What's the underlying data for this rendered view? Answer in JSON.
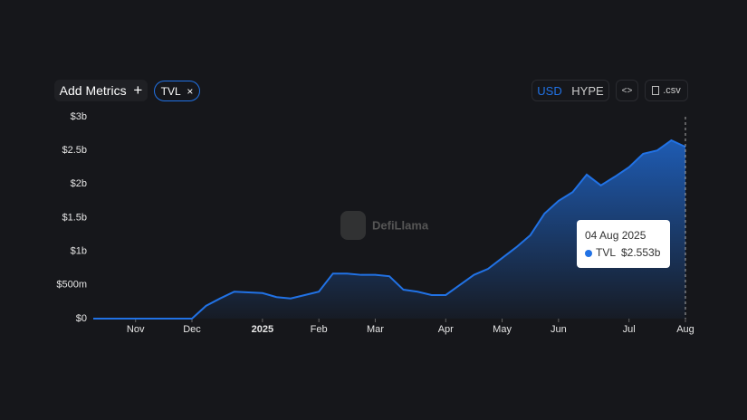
{
  "controls": {
    "add_metrics": "Add Metrics",
    "add_icon": "+",
    "chip": "TVL",
    "chip_close": "×",
    "currency": [
      "USD",
      "HYPE"
    ],
    "embed": "<>",
    "csv": ".csv"
  },
  "watermark": "DefiLlama",
  "tooltip": {
    "date": "04 Aug 2025",
    "value_label": "$2.553b"
  },
  "chart_data": {
    "type": "area",
    "categories": [
      null,
      null,
      null,
      "Nov",
      null,
      null,
      null,
      "Dec",
      null,
      null,
      null,
      null,
      "2025",
      null,
      null,
      null,
      "Feb",
      null,
      null,
      null,
      "Mar",
      null,
      null,
      null,
      null,
      "Apr",
      null,
      null,
      null,
      "May",
      null,
      null,
      null,
      "Jun",
      null,
      null,
      null,
      null,
      "Jul",
      null,
      null,
      null,
      "Aug"
    ],
    "series": [
      {
        "name": "TVL",
        "color": "#2172e5",
        "values": [
          0,
          0,
          0,
          0,
          0,
          0,
          0,
          0,
          0.19,
          0.3,
          0.4,
          0.39,
          0.38,
          0.32,
          0.3,
          0.35,
          0.4,
          0.67,
          0.67,
          0.65,
          0.65,
          0.63,
          0.43,
          0.4,
          0.35,
          0.35,
          0.5,
          0.65,
          0.74,
          0.9,
          1.06,
          1.24,
          1.56,
          1.75,
          1.88,
          2.14,
          1.98,
          2.11,
          2.25,
          2.45,
          2.5,
          2.65,
          2.553
        ]
      }
    ],
    "ylim": [
      0,
      3
    ],
    "yticks": [
      {
        "value": 0,
        "label": "$0"
      },
      {
        "value": 0.5,
        "label": "$500m"
      },
      {
        "value": 1,
        "label": "$1b"
      },
      {
        "value": 1.5,
        "label": "$1.5b"
      },
      {
        "value": 2,
        "label": "$2b"
      },
      {
        "value": 2.5,
        "label": "$2.5b"
      },
      {
        "value": 3,
        "label": "$3b"
      }
    ]
  }
}
